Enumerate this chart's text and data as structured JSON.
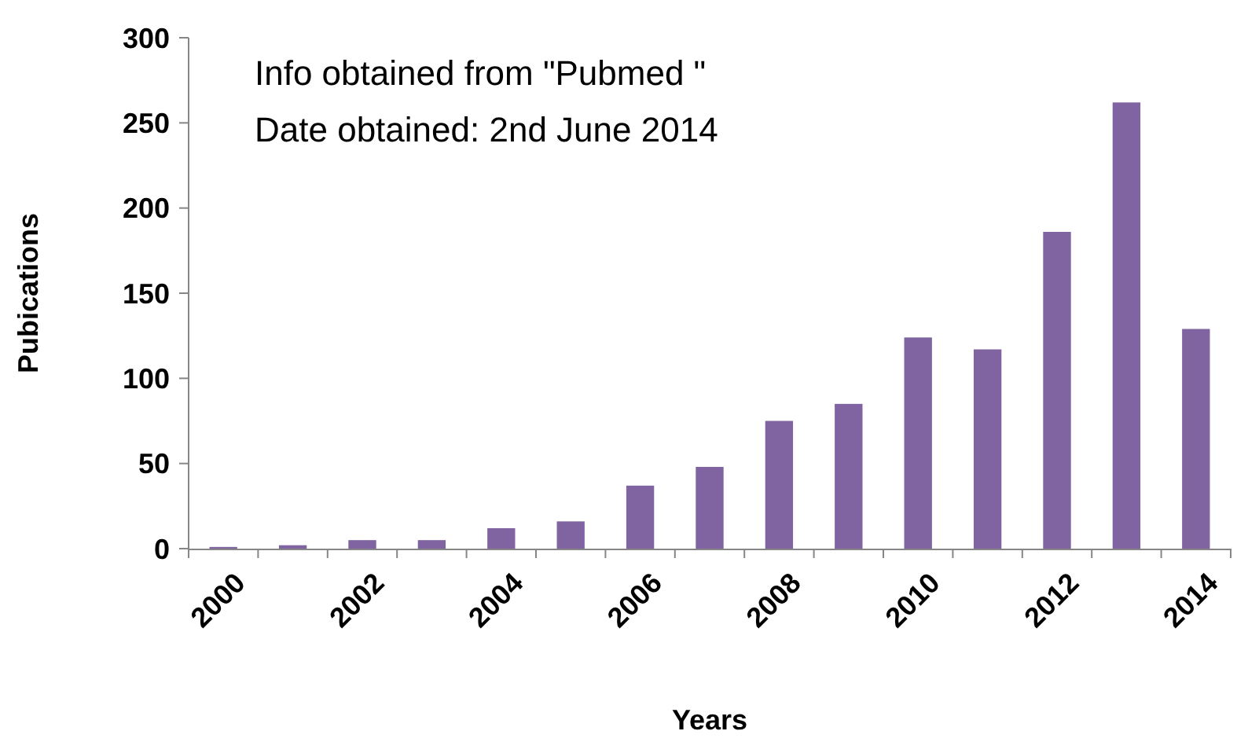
{
  "chart_data": {
    "type": "bar",
    "xlabel": "Years",
    "ylabel": "Pubications",
    "categories": [
      "2000",
      null,
      "2002",
      null,
      "2004",
      null,
      "2006",
      null,
      "2008",
      null,
      "2010",
      null,
      "2012",
      null,
      "2014"
    ],
    "values": [
      1,
      2,
      5,
      5,
      12,
      16,
      37,
      48,
      75,
      85,
      124,
      117,
      186,
      262,
      129
    ],
    "color": "#8064a2",
    "ylim": [
      0,
      300
    ],
    "yticks": [
      0,
      50,
      100,
      150,
      200,
      250,
      300
    ],
    "grid": false,
    "annotations": [
      "Info obtained from \"Pubmed \"",
      "Date obtained:  2nd June 2014"
    ]
  }
}
